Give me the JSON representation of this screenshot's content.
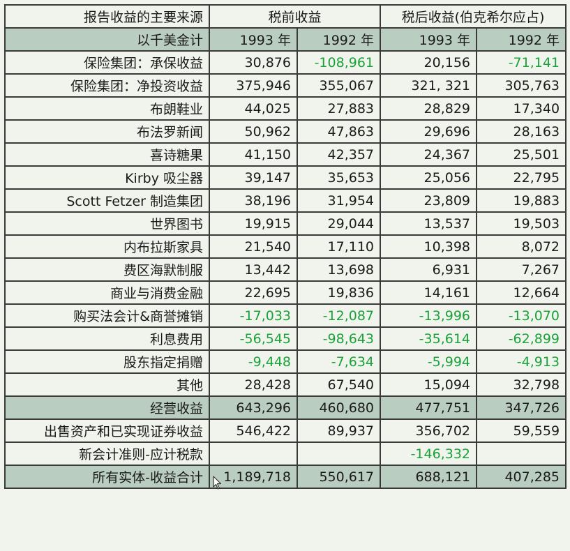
{
  "header": {
    "source_title": "报告收益的主要来源",
    "pretax_title": "税前收益",
    "aftertax_title": "税后收益(伯克希尔应占)",
    "unit_label": "以千美金计",
    "years": [
      "1993 年",
      "1992 年",
      "1993 年",
      "1992 年"
    ]
  },
  "rows": [
    {
      "label": "保险集团：承保收益",
      "values": [
        "30,876",
        "-108,961",
        "20,156",
        "-71,141"
      ],
      "negative": [
        false,
        true,
        false,
        true
      ],
      "shaded": false
    },
    {
      "label": "保险集团：净投资收益",
      "values": [
        "375,946",
        "355,067",
        "321, 321",
        "305,763"
      ],
      "negative": [
        false,
        false,
        false,
        false
      ],
      "shaded": false
    },
    {
      "label": "布朗鞋业",
      "values": [
        "44,025",
        "27,883",
        "28,829",
        "17,340"
      ],
      "negative": [
        false,
        false,
        false,
        false
      ],
      "shaded": false
    },
    {
      "label": "布法罗新闻",
      "values": [
        "50,962",
        "47,863",
        "29,696",
        "28,163"
      ],
      "negative": [
        false,
        false,
        false,
        false
      ],
      "shaded": false
    },
    {
      "label": "喜诗糖果",
      "values": [
        "41,150",
        "42,357",
        "24,367",
        "25,501"
      ],
      "negative": [
        false,
        false,
        false,
        false
      ],
      "shaded": false
    },
    {
      "label": "Kirby 吸尘器",
      "values": [
        "39,147",
        "35,653",
        "25,056",
        "22,795"
      ],
      "negative": [
        false,
        false,
        false,
        false
      ],
      "shaded": false
    },
    {
      "label": "Scott Fetzer 制造集团",
      "values": [
        "38,196",
        "31,954",
        "23,809",
        "19,883"
      ],
      "negative": [
        false,
        false,
        false,
        false
      ],
      "shaded": false
    },
    {
      "label": "世界图书",
      "values": [
        "19,915",
        "29,044",
        "13,537",
        "19,503"
      ],
      "negative": [
        false,
        false,
        false,
        false
      ],
      "shaded": false
    },
    {
      "label": "内布拉斯家具",
      "values": [
        "21,540",
        "17,110",
        "10,398",
        "8,072"
      ],
      "negative": [
        false,
        false,
        false,
        false
      ],
      "shaded": false
    },
    {
      "label": "费区海默制服",
      "values": [
        "13,442",
        "13,698",
        "6,931",
        "7,267"
      ],
      "negative": [
        false,
        false,
        false,
        false
      ],
      "shaded": false
    },
    {
      "label": "商业与消费金融",
      "values": [
        "22,695",
        "19,836",
        "14,161",
        "12,664"
      ],
      "negative": [
        false,
        false,
        false,
        false
      ],
      "shaded": false
    },
    {
      "label": "购买法会计&商誉摊销",
      "values": [
        "-17,033",
        "-12,087",
        "-13,996",
        "-13,070"
      ],
      "negative": [
        true,
        true,
        true,
        true
      ],
      "shaded": false
    },
    {
      "label": "利息费用",
      "values": [
        "-56,545",
        "-98,643",
        "-35,614",
        "-62,899"
      ],
      "negative": [
        true,
        true,
        true,
        true
      ],
      "shaded": false
    },
    {
      "label": "股东指定捐赠",
      "values": [
        "-9,448",
        "-7,634",
        "-5,994",
        "-4,913"
      ],
      "negative": [
        true,
        true,
        true,
        true
      ],
      "shaded": false
    },
    {
      "label": "其他",
      "values": [
        "28,428",
        "67,540",
        "15,094",
        "32,798"
      ],
      "negative": [
        false,
        false,
        false,
        false
      ],
      "shaded": false
    },
    {
      "label": "经营收益",
      "values": [
        "643,296",
        "460,680",
        "477,751",
        "347,726"
      ],
      "negative": [
        false,
        false,
        false,
        false
      ],
      "shaded": true
    },
    {
      "label": "出售资产和已实现证券收益",
      "values": [
        "546,422",
        "89,937",
        "356,702",
        "59,559"
      ],
      "negative": [
        false,
        false,
        false,
        false
      ],
      "shaded": false
    },
    {
      "label": "新会计准则-应计税款",
      "values": [
        "",
        "",
        "-146,332",
        ""
      ],
      "negative": [
        false,
        false,
        true,
        false
      ],
      "shaded": false
    },
    {
      "label": "所有实体-收益合计",
      "values": [
        "1,189,718",
        "550,617",
        "688,121",
        "407,285"
      ],
      "negative": [
        false,
        false,
        false,
        false
      ],
      "shaded": true
    }
  ],
  "colors": {
    "negative": "#1aa23a",
    "shade": "#b9cdc0",
    "background": "#f1f4ec"
  }
}
